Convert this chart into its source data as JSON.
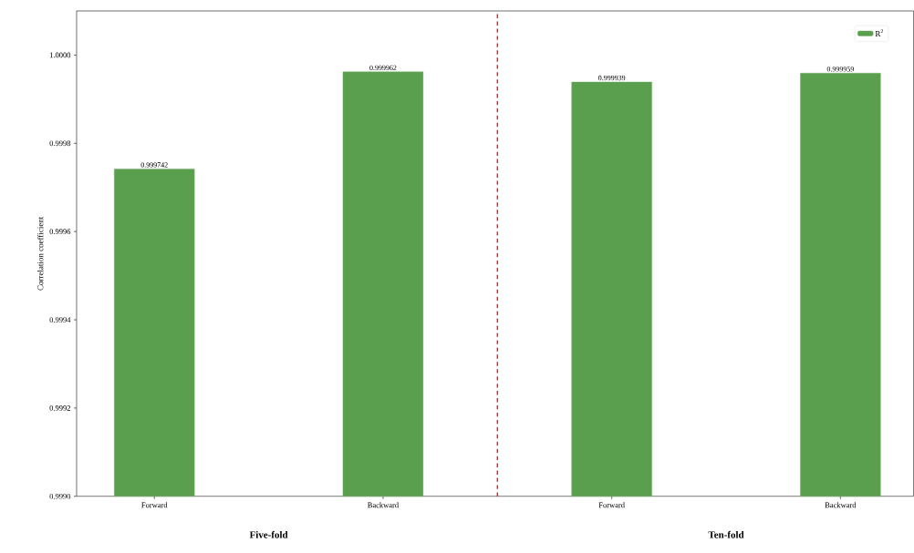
{
  "chart_data": {
    "type": "bar",
    "categories": [
      "Forward",
      "Backward",
      "Forward",
      "Backward"
    ],
    "series": [
      {
        "name": "R$^{2}$",
        "color": "#5a9f4e",
        "values": [
          0.999742,
          0.999962,
          0.999939,
          0.999959
        ]
      }
    ],
    "ylabel": "Correlation coefficient",
    "ylim": [
      0.999,
      1.0001
    ],
    "yticks": [
      {
        "value": 0.999,
        "label": "0.9990"
      },
      {
        "value": 0.9992,
        "label": "0.9992"
      },
      {
        "value": 0.9994,
        "label": "0.9994"
      },
      {
        "value": 0.9996,
        "label": "0.9996"
      },
      {
        "value": 0.9998,
        "label": "0.9998"
      },
      {
        "value": 1.0,
        "label": "1.0000"
      }
    ],
    "annotations": [
      "Five-fold",
      "Ten-fold"
    ],
    "data_labels": true,
    "legend": "top right",
    "grid": false
  }
}
